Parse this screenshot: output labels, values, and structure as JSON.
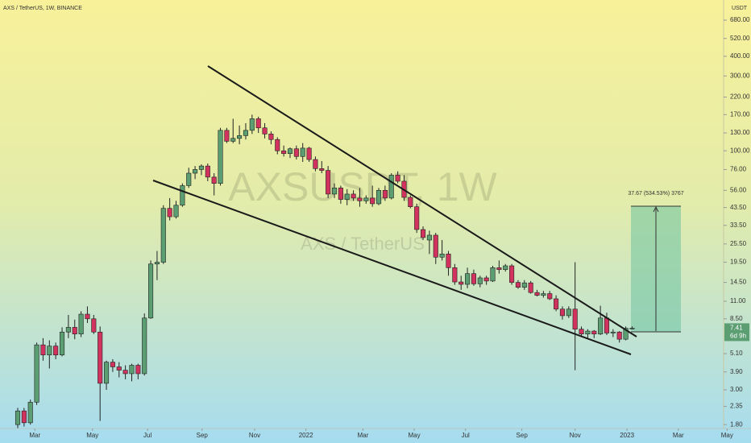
{
  "chart_data": {
    "type": "candlestick",
    "title": "AXS / TetherUS, 1W, BINANCE",
    "watermark": "AXSUSDT, 1W",
    "watermark_subtitle": "AXS / TetherUS",
    "y_axis_label": "USDT",
    "countdown": "6d 9h",
    "measure_label": "37.67 (534.53%) 3767",
    "log_scale": true,
    "grid": false,
    "up_color": "#5a9e72",
    "down_color": "#d2335e",
    "open": [
      1.8,
      2.2,
      1.85,
      2.5,
      5.8,
      5.0,
      5.7,
      5.0,
      7.0,
      7.5,
      6.8,
      9.1,
      8.5,
      7.0,
      3.3,
      4.5,
      4.2,
      4.0,
      3.8,
      4.3,
      3.8,
      8.6,
      19,
      19.5,
      43,
      38,
      45,
      60,
      72,
      76,
      80,
      68,
      62,
      135,
      115,
      120,
      125,
      135,
      160,
      140,
      128,
      118,
      100,
      96,
      103,
      92,
      104,
      88,
      77,
      75,
      53,
      58,
      49,
      53,
      50,
      48,
      50,
      46,
      56,
      50,
      70,
      64,
      50.5,
      44,
      31.5,
      27,
      29,
      21,
      22,
      18,
      14.6,
      14.1,
      16.5,
      14.2,
      15.5,
      14.8,
      18.0,
      17.5,
      18.5,
      14.5,
      13.5,
      14.4,
      12.5,
      12,
      12.3,
      11.4,
      9.8,
      8.9,
      9.8,
      7.3,
      6.8,
      7.1,
      6.8,
      8.6,
      6.9,
      7.0,
      6.3,
      7.4
    ],
    "high": [
      2.3,
      2.3,
      2.6,
      6.0,
      6.4,
      6.2,
      6.0,
      7.5,
      9.0,
      8.4,
      9.5,
      10.2,
      9.0,
      7.6,
      4.6,
      4.7,
      4.5,
      4.3,
      4.4,
      4.4,
      9.2,
      20,
      23,
      45,
      50,
      48,
      62,
      78,
      80,
      82,
      83,
      72,
      140,
      140,
      160,
      145,
      150,
      170,
      165,
      150,
      133,
      122,
      108,
      105,
      108,
      112,
      106,
      92,
      86,
      80,
      62,
      60,
      57,
      56,
      58,
      52,
      60,
      58,
      60,
      72,
      74,
      70,
      52,
      46,
      33,
      31,
      30,
      27,
      23,
      19,
      16,
      18,
      17.5,
      16,
      16,
      18.5,
      20,
      19,
      19,
      15,
      15,
      14.8,
      13,
      12.8,
      12.8,
      12,
      10.2,
      10.2,
      19.5,
      7.6,
      7.3,
      7.2,
      10.3,
      9.3,
      7.3,
      7.1,
      7.6,
      7.6
    ],
    "low": [
      1.7,
      1.75,
      1.8,
      2.4,
      4.6,
      4.1,
      4.7,
      4.9,
      6.4,
      6.3,
      6.5,
      8.0,
      6.8,
      1.9,
      3.0,
      3.9,
      3.6,
      3.5,
      3.4,
      3.5,
      3.7,
      8.5,
      15,
      19,
      36,
      37,
      44,
      58,
      66,
      70,
      64,
      52,
      60,
      112,
      112,
      110,
      118,
      128,
      130,
      120,
      110,
      95,
      92,
      90,
      88,
      85,
      85,
      74,
      72,
      50,
      50,
      46,
      45,
      48,
      44,
      46,
      44,
      45,
      48,
      49,
      62,
      48,
      43,
      30,
      27,
      22,
      19,
      20,
      16,
      14,
      13,
      13.3,
      13.8,
      13.5,
      14,
      14.6,
      16.5,
      17,
      14,
      13.2,
      13,
      12.3,
      11.8,
      11.6,
      11.2,
      9.5,
      8.4,
      8.6,
      4.0,
      6.5,
      6.4,
      6.4,
      6.7,
      6.7,
      6.5,
      6.0,
      6.2,
      7.3
    ],
    "close": [
      2.2,
      1.85,
      2.5,
      5.8,
      5.0,
      5.7,
      5.0,
      7.0,
      7.5,
      6.8,
      9.1,
      8.5,
      7.0,
      3.3,
      4.5,
      4.2,
      4.0,
      3.8,
      4.3,
      3.8,
      8.6,
      19,
      19.5,
      43,
      38,
      45,
      60,
      72,
      76,
      80,
      68,
      62,
      135,
      115,
      120,
      125,
      135,
      160,
      140,
      128,
      118,
      100,
      96,
      103,
      92,
      104,
      88,
      77,
      75,
      53,
      58,
      49,
      53,
      50,
      48,
      50,
      46,
      56,
      50,
      70,
      64,
      50.5,
      44,
      31.5,
      28,
      29,
      21,
      22,
      18,
      14.6,
      14.1,
      16.5,
      14.2,
      15.5,
      14.8,
      18.0,
      17.5,
      18.5,
      14.5,
      13.5,
      14.4,
      12.5,
      12,
      12.3,
      11.4,
      9.8,
      8.9,
      9.8,
      7.3,
      6.8,
      7.1,
      6.8,
      8.6,
      6.9,
      7.0,
      6.3,
      7.4,
      7.41
    ],
    "ylim": [
      1.7,
      914
    ],
    "yticks": [
      {
        "value": 680,
        "label": "680.00"
      },
      {
        "value": 520,
        "label": "520.00"
      },
      {
        "value": 400,
        "label": "400.00"
      },
      {
        "value": 300,
        "label": "300.00"
      },
      {
        "value": 220,
        "label": "220.00"
      },
      {
        "value": 170,
        "label": "170.00"
      },
      {
        "value": 130,
        "label": "130.00"
      },
      {
        "value": 100,
        "label": "100.00"
      },
      {
        "value": 76,
        "label": "76.00"
      },
      {
        "value": 56,
        "label": "56.00"
      },
      {
        "value": 43.5,
        "label": "43.50"
      },
      {
        "value": 33.5,
        "label": "33.50"
      },
      {
        "value": 25.5,
        "label": "25.50"
      },
      {
        "value": 19.5,
        "label": "19.50"
      },
      {
        "value": 14.5,
        "label": "14.50"
      },
      {
        "value": 11,
        "label": "11.00"
      },
      {
        "value": 8.5,
        "label": "8.50"
      },
      {
        "value": 5.1,
        "label": "5.10"
      },
      {
        "value": 3.9,
        "label": "3.90"
      },
      {
        "value": 3,
        "label": "3.00"
      },
      {
        "value": 2.35,
        "label": "2.35"
      },
      {
        "value": 1.8,
        "label": "1.80"
      }
    ],
    "xlim": [
      -2.8,
      111.45
    ],
    "xticks": [
      {
        "value": 2.7,
        "label": "Mar"
      },
      {
        "value": 11.8,
        "label": "May"
      },
      {
        "value": 20.5,
        "label": "Jul"
      },
      {
        "value": 29.1,
        "label": "Sep"
      },
      {
        "value": 37.4,
        "label": "Nov"
      },
      {
        "value": 45.5,
        "label": "2022"
      },
      {
        "value": 54.5,
        "label": "Mar"
      },
      {
        "value": 62.6,
        "label": "May"
      },
      {
        "value": 70.7,
        "label": "Jul"
      },
      {
        "value": 79.6,
        "label": "Sep"
      },
      {
        "value": 88,
        "label": "Nov"
      },
      {
        "value": 96.2,
        "label": "2023"
      },
      {
        "value": 104.3,
        "label": "Mar"
      },
      {
        "value": 112,
        "label": "May"
      }
    ]
  }
}
